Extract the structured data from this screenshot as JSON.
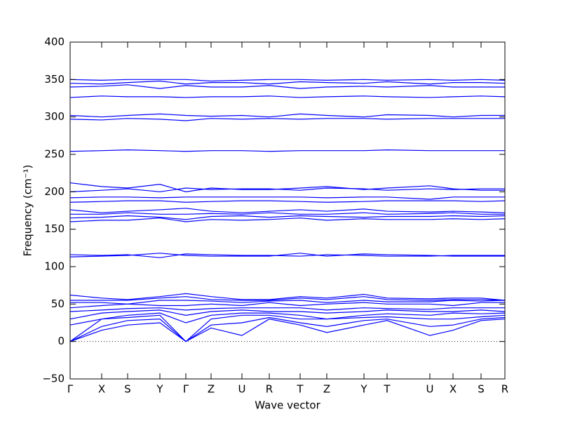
{
  "chart_data": {
    "type": "line",
    "xlabel": "Wave vector",
    "ylabel": "Frequency (cm⁻¹)",
    "x": [
      0,
      45,
      82,
      128,
      165,
      201,
      245,
      284,
      328,
      366,
      419,
      452,
      513,
      546,
      586,
      620
    ],
    "xlim": [
      0,
      620
    ],
    "xticks": [
      {
        "value": 0,
        "label": "Γ"
      },
      {
        "value": 45,
        "label": "X"
      },
      {
        "value": 82,
        "label": "S"
      },
      {
        "value": 128,
        "label": "Y"
      },
      {
        "value": 165,
        "label": "Γ"
      },
      {
        "value": 201,
        "label": "Z"
      },
      {
        "value": 245,
        "label": "U"
      },
      {
        "value": 284,
        "label": "R"
      },
      {
        "value": 328,
        "label": "T"
      },
      {
        "value": 366,
        "label": "Z"
      },
      {
        "value": 419,
        "label": "Y"
      },
      {
        "value": 452,
        "label": "T"
      },
      {
        "value": 513,
        "label": "U"
      },
      {
        "value": 546,
        "label": "X"
      },
      {
        "value": 586,
        "label": "S"
      },
      {
        "value": 620,
        "label": "R"
      }
    ],
    "ylim": [
      -50,
      400
    ],
    "yticks": [
      {
        "value": -50,
        "label": "−50"
      },
      0,
      50,
      100,
      150,
      200,
      250,
      300,
      350,
      400
    ],
    "hline": 0,
    "series": [
      {
        "color": "#0000ff",
        "values": [
          0,
          15,
          22,
          25,
          0,
          18,
          8,
          30,
          22,
          12,
          22,
          28,
          8,
          15,
          28,
          30
        ]
      },
      {
        "color": "#0000ff",
        "values": [
          0,
          20,
          28,
          30,
          0,
          22,
          25,
          32,
          25,
          20,
          28,
          30,
          20,
          22,
          30,
          32
        ]
      },
      {
        "color": "#0000ff",
        "values": [
          0,
          30,
          32,
          35,
          0,
          30,
          35,
          35,
          30,
          30,
          32,
          33,
          30,
          30,
          33,
          35
        ]
      },
      {
        "color": "#0000ff",
        "values": [
          22,
          30,
          35,
          38,
          25,
          35,
          38,
          38,
          35,
          30,
          35,
          37,
          35,
          38,
          37,
          38
        ]
      },
      {
        "color": "#0000ff",
        "values": [
          30,
          38,
          40,
          42,
          35,
          40,
          42,
          40,
          40,
          38,
          40,
          42,
          40,
          40,
          42,
          40
        ]
      },
      {
        "color": "#0000ff",
        "values": [
          40,
          42,
          44,
          45,
          42,
          44,
          45,
          45,
          45,
          42,
          45,
          44,
          43,
          45,
          45,
          45
        ]
      },
      {
        "color": "#0000ff",
        "values": [
          45,
          48,
          50,
          48,
          48,
          50,
          48,
          52,
          48,
          50,
          52,
          50,
          50,
          48,
          52,
          52
        ]
      },
      {
        "color": "#0000ff",
        "values": [
          52,
          52,
          50,
          55,
          55,
          54,
          52,
          54,
          55,
          52,
          55,
          53,
          53,
          55,
          54,
          55
        ]
      },
      {
        "color": "#0000ff",
        "values": [
          55,
          55,
          55,
          58,
          60,
          56,
          55,
          55,
          58,
          56,
          60,
          56,
          55,
          56,
          56,
          55
        ]
      },
      {
        "color": "#0000ff",
        "values": [
          62,
          58,
          56,
          60,
          64,
          60,
          56,
          56,
          60,
          58,
          63,
          58,
          57,
          58,
          58,
          55
        ]
      },
      {
        "color": "#0000ff",
        "values": [
          113,
          114,
          115,
          118,
          115,
          114,
          114,
          114,
          118,
          114,
          117,
          116,
          115,
          114,
          114,
          114
        ]
      },
      {
        "color": "#0000ff",
        "values": [
          116,
          115,
          116,
          112,
          117,
          116,
          115,
          115,
          114,
          116,
          115,
          114,
          114,
          115,
          115,
          115
        ]
      },
      {
        "color": "#0000ff",
        "values": [
          160,
          162,
          162,
          165,
          160,
          163,
          162,
          163,
          165,
          162,
          164,
          163,
          163,
          164,
          163,
          164
        ]
      },
      {
        "color": "#0000ff",
        "values": [
          165,
          166,
          168,
          166,
          163,
          167,
          168,
          166,
          168,
          167,
          166,
          167,
          167,
          168,
          167,
          168
        ]
      },
      {
        "color": "#0000ff",
        "values": [
          170,
          170,
          172,
          170,
          170,
          171,
          170,
          172,
          170,
          170,
          172,
          170,
          171,
          172,
          170,
          170
        ]
      },
      {
        "color": "#0000ff",
        "values": [
          176,
          172,
          174,
          176,
          178,
          174,
          172,
          174,
          176,
          174,
          177,
          174,
          173,
          174,
          173,
          172
        ]
      },
      {
        "color": "#0000ff",
        "values": [
          186,
          187,
          188,
          188,
          186,
          187,
          188,
          188,
          187,
          186,
          187,
          188,
          188,
          188,
          187,
          188
        ]
      },
      {
        "color": "#0000ff",
        "values": [
          192,
          193,
          193,
          192,
          193,
          193,
          193,
          193,
          193,
          192,
          193,
          193,
          190,
          193,
          193,
          193
        ]
      },
      {
        "color": "#0000ff",
        "values": [
          200,
          202,
          204,
          200,
          205,
          203,
          204,
          204,
          202,
          205,
          204,
          202,
          204,
          203,
          204,
          204
        ]
      },
      {
        "color": "#0000ff",
        "values": [
          212,
          207,
          205,
          210,
          200,
          205,
          203,
          203,
          205,
          207,
          203,
          205,
          208,
          204,
          202,
          202
        ]
      },
      {
        "color": "#0000ff",
        "values": [
          254,
          255,
          256,
          255,
          254,
          255,
          255,
          254,
          255,
          255,
          255,
          256,
          255,
          255,
          255,
          255
        ]
      },
      {
        "color": "#0000ff",
        "values": [
          297,
          296,
          298,
          297,
          295,
          298,
          297,
          298,
          297,
          298,
          298,
          297,
          298,
          298,
          298,
          298
        ]
      },
      {
        "color": "#0000ff",
        "values": [
          302,
          300,
          302,
          304,
          302,
          301,
          302,
          300,
          304,
          302,
          300,
          303,
          302,
          300,
          302,
          302
        ]
      },
      {
        "color": "#0000ff",
        "values": [
          326,
          328,
          327,
          327,
          326,
          327,
          327,
          328,
          326,
          327,
          328,
          327,
          326,
          327,
          328,
          327
        ]
      },
      {
        "color": "#0000ff",
        "values": [
          340,
          341,
          343,
          338,
          342,
          340,
          340,
          342,
          338,
          340,
          341,
          340,
          342,
          340,
          340,
          340
        ]
      },
      {
        "color": "#0000ff",
        "values": [
          345,
          344,
          346,
          348,
          344,
          346,
          346,
          344,
          347,
          346,
          345,
          347,
          344,
          346,
          346,
          345
        ]
      },
      {
        "color": "#0000ff",
        "values": [
          350,
          349,
          350,
          350,
          350,
          348,
          349,
          350,
          350,
          349,
          350,
          349,
          350,
          349,
          350,
          349
        ]
      }
    ]
  }
}
